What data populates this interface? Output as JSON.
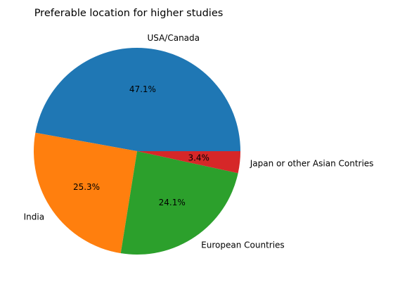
{
  "chart_data": {
    "type": "pie",
    "title": "Preferable location for higher studies",
    "slices": [
      {
        "label": "USA/Canada",
        "value": 47.1,
        "pct_label": "47.1%",
        "color": "#1f77b4"
      },
      {
        "label": "India",
        "value": 25.3,
        "pct_label": "25.3%",
        "color": "#ff7f0e"
      },
      {
        "label": "European Countries",
        "value": 24.1,
        "pct_label": "24.1%",
        "color": "#2ca02c"
      },
      {
        "label": "Japan or other Asian Contries",
        "value": 3.4,
        "pct_label": "3.4%",
        "color": "#d62728"
      }
    ],
    "start_angle": 0,
    "direction": "counterclockwise"
  }
}
